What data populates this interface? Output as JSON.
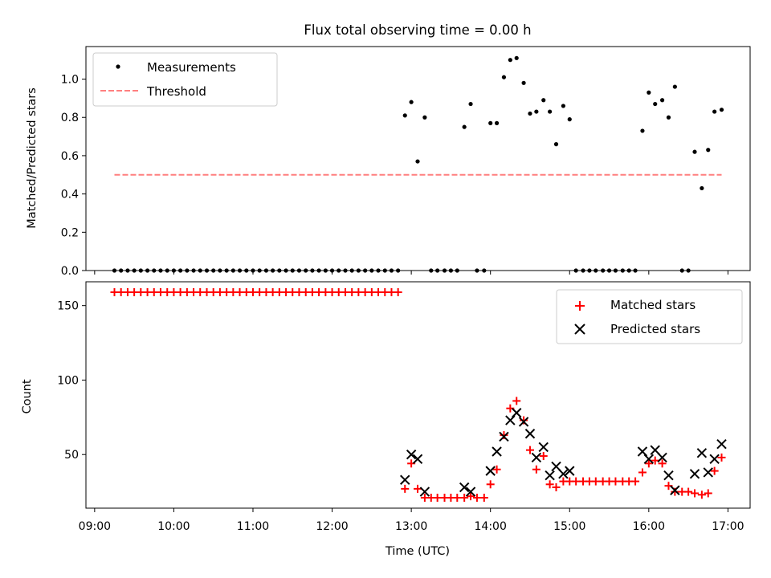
{
  "chart_data": [
    {
      "type": "scatter",
      "title": "Flux total observing time = 0.00 h",
      "xlabel": "",
      "ylabel": "Matched/Predicted stars",
      "ylim": [
        0,
        1.17
      ],
      "yticks": [
        "0.0",
        "0.2",
        "0.4",
        "0.6",
        "0.8",
        "1.0"
      ],
      "legend_position": "upper-left",
      "grid": false,
      "series": [
        {
          "name": "Measurements",
          "marker": "dot",
          "color": "#000000",
          "points": [
            [
              9.25,
              0
            ],
            [
              9.333,
              0
            ],
            [
              9.417,
              0
            ],
            [
              9.5,
              0
            ],
            [
              9.583,
              0
            ],
            [
              9.667,
              0
            ],
            [
              9.75,
              0
            ],
            [
              9.833,
              0
            ],
            [
              9.917,
              0
            ],
            [
              10.0,
              0
            ],
            [
              10.083,
              0
            ],
            [
              10.167,
              0
            ],
            [
              10.25,
              0
            ],
            [
              10.333,
              0
            ],
            [
              10.417,
              0
            ],
            [
              10.5,
              0
            ],
            [
              10.583,
              0
            ],
            [
              10.667,
              0
            ],
            [
              10.75,
              0
            ],
            [
              10.833,
              0
            ],
            [
              10.917,
              0
            ],
            [
              11.0,
              0
            ],
            [
              11.083,
              0
            ],
            [
              11.167,
              0
            ],
            [
              11.25,
              0
            ],
            [
              11.333,
              0
            ],
            [
              11.417,
              0
            ],
            [
              11.5,
              0
            ],
            [
              11.583,
              0
            ],
            [
              11.667,
              0
            ],
            [
              11.75,
              0
            ],
            [
              11.833,
              0
            ],
            [
              11.917,
              0
            ],
            [
              12.0,
              0
            ],
            [
              12.083,
              0
            ],
            [
              12.167,
              0
            ],
            [
              12.25,
              0
            ],
            [
              12.333,
              0
            ],
            [
              12.417,
              0
            ],
            [
              12.5,
              0
            ],
            [
              12.583,
              0
            ],
            [
              12.667,
              0
            ],
            [
              12.75,
              0
            ],
            [
              12.833,
              0
            ],
            [
              12.92,
              0.81
            ],
            [
              13.0,
              0.88
            ],
            [
              13.08,
              0.57
            ],
            [
              13.17,
              0.8
            ],
            [
              13.25,
              0
            ],
            [
              13.33,
              0
            ],
            [
              13.42,
              0
            ],
            [
              13.5,
              0
            ],
            [
              13.58,
              0
            ],
            [
              13.67,
              0.75
            ],
            [
              13.75,
              0.87
            ],
            [
              13.83,
              0
            ],
            [
              13.92,
              0
            ],
            [
              14.0,
              0.77
            ],
            [
              14.08,
              0.77
            ],
            [
              14.17,
              1.01
            ],
            [
              14.25,
              1.1
            ],
            [
              14.33,
              1.11
            ],
            [
              14.42,
              0.98
            ],
            [
              14.5,
              0.82
            ],
            [
              14.58,
              0.83
            ],
            [
              14.67,
              0.89
            ],
            [
              14.75,
              0.83
            ],
            [
              14.83,
              0.66
            ],
            [
              14.92,
              0.86
            ],
            [
              15.0,
              0.79
            ],
            [
              15.08,
              0
            ],
            [
              15.17,
              0
            ],
            [
              15.25,
              0
            ],
            [
              15.33,
              0
            ],
            [
              15.42,
              0
            ],
            [
              15.5,
              0
            ],
            [
              15.58,
              0
            ],
            [
              15.67,
              0
            ],
            [
              15.75,
              0
            ],
            [
              15.83,
              0
            ],
            [
              15.92,
              0.73
            ],
            [
              16.0,
              0.93
            ],
            [
              16.08,
              0.87
            ],
            [
              16.17,
              0.89
            ],
            [
              16.25,
              0.8
            ],
            [
              16.33,
              0.96
            ],
            [
              16.42,
              0
            ],
            [
              16.5,
              0
            ],
            [
              16.58,
              0.62
            ],
            [
              16.67,
              0.43
            ],
            [
              16.75,
              0.63
            ],
            [
              16.83,
              0.83
            ],
            [
              16.92,
              0.84
            ]
          ]
        },
        {
          "name": "Threshold",
          "style": "dashed",
          "color": "#ff7f7f",
          "points": [
            [
              9.25,
              0.5
            ],
            [
              16.92,
              0.5
            ]
          ]
        }
      ]
    },
    {
      "type": "scatter",
      "title": "",
      "xlabel": "Time (UTC)",
      "ylabel": "Count",
      "ylim": [
        14,
        166
      ],
      "yticks": [
        "50",
        "100",
        "150"
      ],
      "xlim": [
        8.89,
        17.28
      ],
      "xticks": [
        "09:00",
        "10:00",
        "11:00",
        "12:00",
        "13:00",
        "14:00",
        "15:00",
        "16:00",
        "17:00"
      ],
      "legend_position": "upper-right",
      "grid": false,
      "series": [
        {
          "name": "Matched stars",
          "marker": "plus",
          "color": "#ff0000",
          "points": [
            [
              9.25,
              159
            ],
            [
              9.333,
              159
            ],
            [
              9.417,
              159
            ],
            [
              9.5,
              159
            ],
            [
              9.583,
              159
            ],
            [
              9.667,
              159
            ],
            [
              9.75,
              159
            ],
            [
              9.833,
              159
            ],
            [
              9.917,
              159
            ],
            [
              10.0,
              159
            ],
            [
              10.083,
              159
            ],
            [
              10.167,
              159
            ],
            [
              10.25,
              159
            ],
            [
              10.333,
              159
            ],
            [
              10.417,
              159
            ],
            [
              10.5,
              159
            ],
            [
              10.583,
              159
            ],
            [
              10.667,
              159
            ],
            [
              10.75,
              159
            ],
            [
              10.833,
              159
            ],
            [
              10.917,
              159
            ],
            [
              11.0,
              159
            ],
            [
              11.083,
              159
            ],
            [
              11.167,
              159
            ],
            [
              11.25,
              159
            ],
            [
              11.333,
              159
            ],
            [
              11.417,
              159
            ],
            [
              11.5,
              159
            ],
            [
              11.583,
              159
            ],
            [
              11.667,
              159
            ],
            [
              11.75,
              159
            ],
            [
              11.833,
              159
            ],
            [
              11.917,
              159
            ],
            [
              12.0,
              159
            ],
            [
              12.083,
              159
            ],
            [
              12.167,
              159
            ],
            [
              12.25,
              159
            ],
            [
              12.333,
              159
            ],
            [
              12.417,
              159
            ],
            [
              12.5,
              159
            ],
            [
              12.583,
              159
            ],
            [
              12.667,
              159
            ],
            [
              12.75,
              159
            ],
            [
              12.833,
              159
            ],
            [
              12.92,
              27
            ],
            [
              13.0,
              44
            ],
            [
              13.08,
              27
            ],
            [
              13.17,
              21
            ],
            [
              13.25,
              21
            ],
            [
              13.33,
              21
            ],
            [
              13.42,
              21
            ],
            [
              13.5,
              21
            ],
            [
              13.58,
              21
            ],
            [
              13.67,
              21
            ],
            [
              13.75,
              22
            ],
            [
              13.83,
              21
            ],
            [
              13.92,
              21
            ],
            [
              14.0,
              30
            ],
            [
              14.08,
              40
            ],
            [
              14.17,
              63
            ],
            [
              14.25,
              81
            ],
            [
              14.33,
              86
            ],
            [
              14.42,
              73
            ],
            [
              14.5,
              53
            ],
            [
              14.58,
              40
            ],
            [
              14.67,
              49
            ],
            [
              14.75,
              30
            ],
            [
              14.83,
              28
            ],
            [
              14.92,
              32
            ],
            [
              15.0,
              32
            ],
            [
              15.08,
              32
            ],
            [
              15.17,
              32
            ],
            [
              15.25,
              32
            ],
            [
              15.33,
              32
            ],
            [
              15.42,
              32
            ],
            [
              15.5,
              32
            ],
            [
              15.58,
              32
            ],
            [
              15.67,
              32
            ],
            [
              15.75,
              32
            ],
            [
              15.83,
              32
            ],
            [
              15.92,
              38
            ],
            [
              16.0,
              44
            ],
            [
              16.08,
              46
            ],
            [
              16.17,
              44
            ],
            [
              16.25,
              29
            ],
            [
              16.33,
              25
            ],
            [
              16.42,
              25
            ],
            [
              16.5,
              25
            ],
            [
              16.58,
              24
            ],
            [
              16.67,
              23
            ],
            [
              16.75,
              24
            ],
            [
              16.83,
              39
            ],
            [
              16.92,
              48
            ]
          ]
        },
        {
          "name": "Predicted stars",
          "marker": "x",
          "color": "#000000",
          "points": [
            [
              12.92,
              33
            ],
            [
              13.0,
              50
            ],
            [
              13.08,
              47
            ],
            [
              13.17,
              25
            ],
            [
              13.67,
              28
            ],
            [
              13.75,
              25
            ],
            [
              14.0,
              39
            ],
            [
              14.08,
              52
            ],
            [
              14.17,
              62
            ],
            [
              14.25,
              73
            ],
            [
              14.33,
              78
            ],
            [
              14.42,
              72
            ],
            [
              14.5,
              64
            ],
            [
              14.58,
              48
            ],
            [
              14.67,
              55
            ],
            [
              14.75,
              36
            ],
            [
              14.83,
              42
            ],
            [
              14.92,
              37
            ],
            [
              15.0,
              39
            ],
            [
              15.92,
              52
            ],
            [
              16.0,
              47
            ],
            [
              16.08,
              53
            ],
            [
              16.17,
              48
            ],
            [
              16.25,
              36
            ],
            [
              16.33,
              26
            ],
            [
              16.58,
              37
            ],
            [
              16.67,
              51
            ],
            [
              16.75,
              38
            ],
            [
              16.83,
              47
            ],
            [
              16.92,
              57
            ]
          ]
        }
      ]
    }
  ]
}
